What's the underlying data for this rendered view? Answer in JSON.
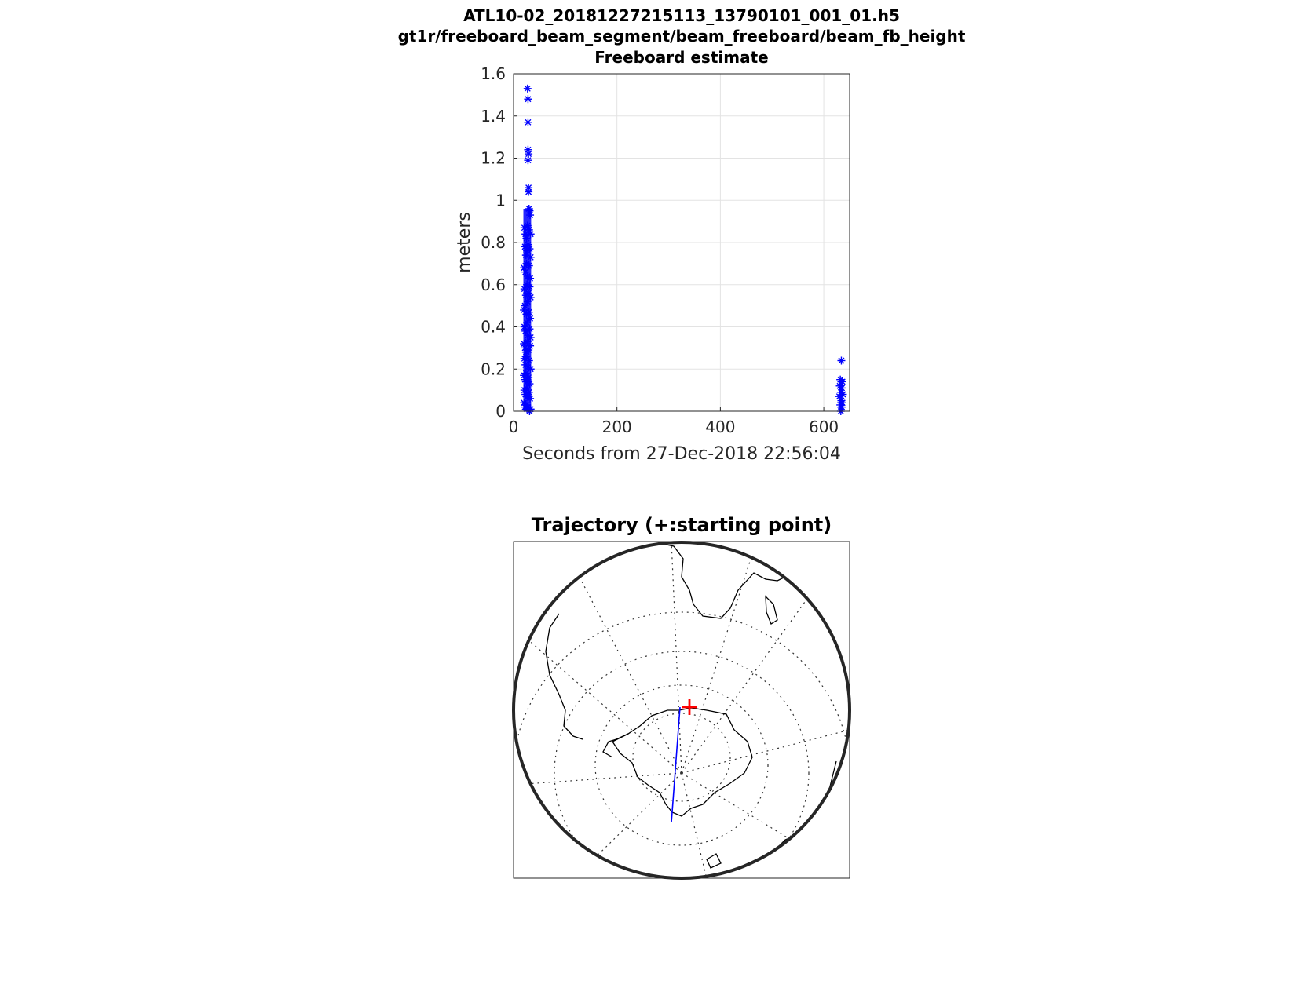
{
  "figure": {
    "title_line1": "ATL10-02_20181227215113_13790101_001_01.h5",
    "title_line2": "gt1r/freeboard_beam_segment/beam_freeboard/beam_fb_height",
    "title_line3": "Freeboard estimate"
  },
  "chart_data": [
    {
      "type": "scatter",
      "title": "Freeboard estimate",
      "xlabel": "Seconds from 27-Dec-2018 22:56:04",
      "ylabel": "meters",
      "xlim": [
        0,
        650
      ],
      "ylim": [
        0,
        1.6
      ],
      "xticks": [
        0,
        200,
        400,
        600
      ],
      "yticks": [
        0,
        0.2,
        0.4,
        0.6,
        0.8,
        1,
        1.2,
        1.4,
        1.6
      ],
      "xtick_labels": [
        "0",
        "200",
        "400",
        "600"
      ],
      "ytick_labels": [
        "0",
        "0.2",
        "0.4",
        "0.6",
        "0.8",
        "1",
        "1.2",
        "1.4",
        "1.6"
      ],
      "grid": true,
      "marker": "*",
      "color": "#0000ff",
      "series": [
        {
          "points": [
            [
              27,
              1.53
            ],
            [
              28,
              1.48
            ],
            [
              28,
              1.37
            ],
            [
              28,
              1.24
            ],
            [
              29,
              1.22
            ],
            [
              28,
              1.19
            ],
            [
              29,
              1.06
            ],
            [
              29,
              1.04
            ],
            [
              30,
              0.96
            ],
            [
              31,
              0.95
            ],
            [
              32,
              0.93
            ],
            [
              21,
              0.87
            ],
            [
              23,
              0.84
            ],
            [
              25,
              0.82
            ],
            [
              27,
              0.88
            ],
            [
              30,
              0.86
            ],
            [
              33,
              0.84
            ],
            [
              22,
              0.78
            ],
            [
              24,
              0.74
            ],
            [
              26,
              0.76
            ],
            [
              28,
              0.79
            ],
            [
              31,
              0.77
            ],
            [
              33,
              0.73
            ],
            [
              20,
              0.68
            ],
            [
              23,
              0.66
            ],
            [
              25,
              0.7
            ],
            [
              27,
              0.64
            ],
            [
              30,
              0.69
            ],
            [
              32,
              0.63
            ],
            [
              21,
              0.58
            ],
            [
              24,
              0.55
            ],
            [
              26,
              0.6
            ],
            [
              29,
              0.56
            ],
            [
              31,
              0.59
            ],
            [
              33,
              0.54
            ],
            [
              20,
              0.48
            ],
            [
              22,
              0.5
            ],
            [
              25,
              0.46
            ],
            [
              27,
              0.52
            ],
            [
              30,
              0.47
            ],
            [
              32,
              0.44
            ],
            [
              21,
              0.4
            ],
            [
              23,
              0.38
            ],
            [
              26,
              0.42
            ],
            [
              28,
              0.36
            ],
            [
              31,
              0.39
            ],
            [
              33,
              0.35
            ],
            [
              20,
              0.32
            ],
            [
              22,
              0.3
            ],
            [
              24,
              0.28
            ],
            [
              27,
              0.33
            ],
            [
              29,
              0.29
            ],
            [
              32,
              0.31
            ],
            [
              21,
              0.25
            ],
            [
              23,
              0.22
            ],
            [
              25,
              0.26
            ],
            [
              28,
              0.21
            ],
            [
              30,
              0.24
            ],
            [
              33,
              0.2
            ],
            [
              20,
              0.17
            ],
            [
              22,
              0.15
            ],
            [
              24,
              0.18
            ],
            [
              26,
              0.14
            ],
            [
              29,
              0.16
            ],
            [
              31,
              0.13
            ],
            [
              21,
              0.1
            ],
            [
              23,
              0.08
            ],
            [
              25,
              0.11
            ],
            [
              27,
              0.07
            ],
            [
              30,
              0.09
            ],
            [
              32,
              0.06
            ],
            [
              20,
              0.04
            ],
            [
              22,
              0.02
            ],
            [
              24,
              0.03
            ],
            [
              26,
              0.01
            ],
            [
              28,
              0.02
            ],
            [
              31,
              0.0
            ],
            [
              33,
              0.01
            ],
            [
              634,
              0.24
            ],
            [
              632,
              0.15
            ],
            [
              636,
              0.14
            ],
            [
              631,
              0.12
            ],
            [
              635,
              0.11
            ],
            [
              633,
              0.09
            ],
            [
              637,
              0.08
            ],
            [
              630,
              0.07
            ],
            [
              634,
              0.05
            ],
            [
              636,
              0.04
            ],
            [
              632,
              0.03
            ],
            [
              635,
              0.02
            ],
            [
              633,
              0.0
            ]
          ]
        }
      ]
    },
    {
      "type": "map",
      "title": "Trajectory (+:starting point)",
      "projection": "south-polar stereographic",
      "track_color": "#0000ff",
      "start_marker_color": "#ff0000",
      "start_marker": "+"
    }
  ]
}
